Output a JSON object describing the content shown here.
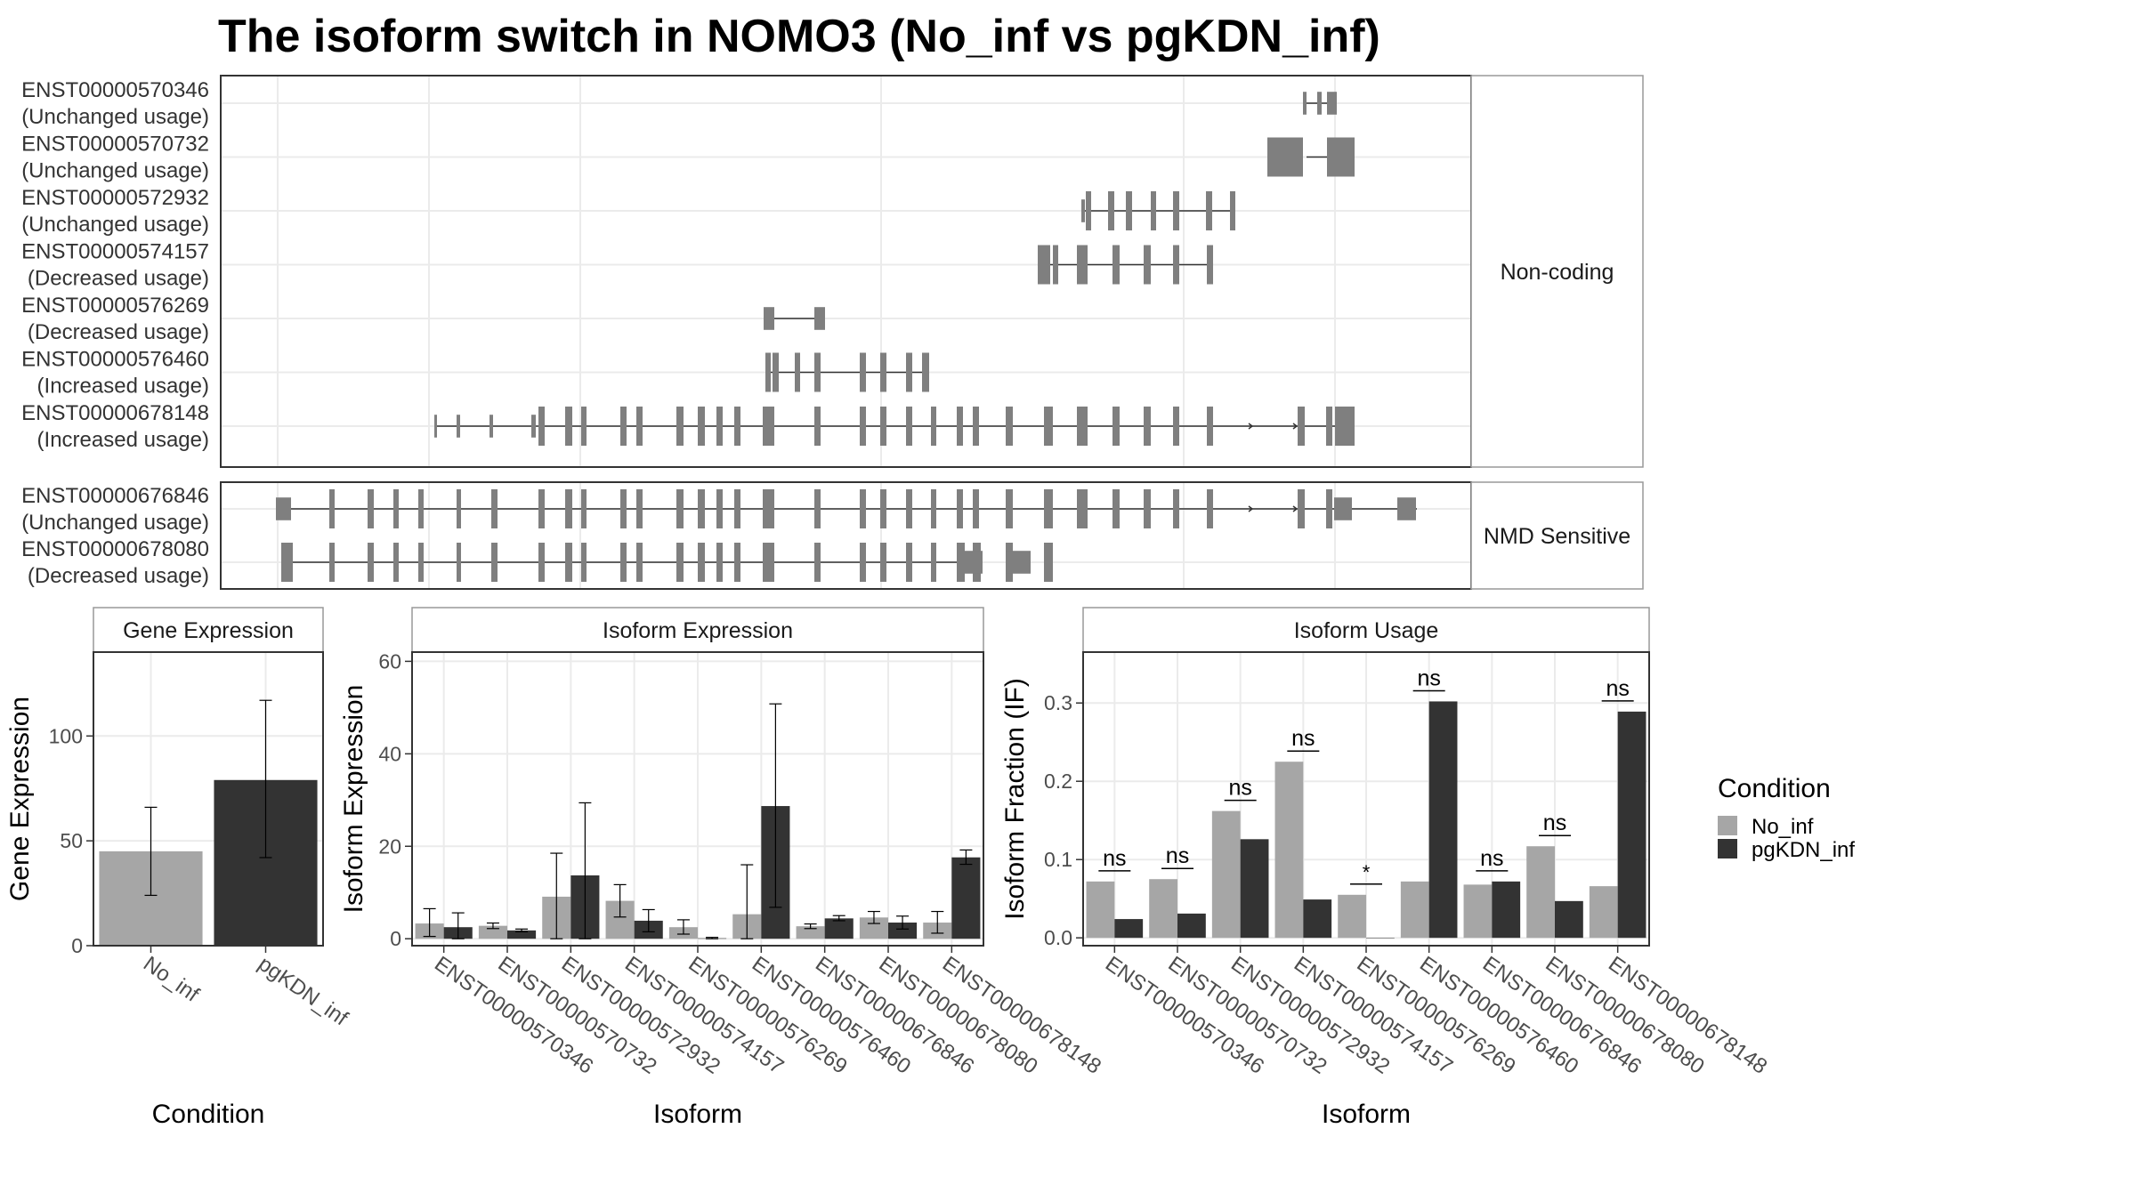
{
  "title": "The isoform switch in NOMO3 (No_inf vs pgKDN_inf)",
  "colors": {
    "no_inf": "#a6a6a6",
    "pgkdn_inf": "#333333",
    "exon": "#7f7f7f",
    "panel_border": "#333333",
    "strip_fill": "#ffffff",
    "grid": "#ebebeb",
    "text": "#333333"
  },
  "chart_data": [
    {
      "type": "gene-structure",
      "panels": [
        {
          "label": "Non-coding",
          "isoforms": [
            {
              "id": "ENST00000570346",
              "usage": "(Unchanged usage)"
            },
            {
              "id": "ENST00000570732",
              "usage": "(Unchanged usage)"
            },
            {
              "id": "ENST00000572932",
              "usage": "(Unchanged usage)"
            },
            {
              "id": "ENST00000574157",
              "usage": "(Decreased usage)"
            },
            {
              "id": "ENST00000576269",
              "usage": "(Decreased usage)"
            },
            {
              "id": "ENST00000576460",
              "usage": "(Increased usage)"
            },
            {
              "id": "ENST00000678148",
              "usage": "(Increased usage)"
            }
          ]
        },
        {
          "label": "NMD Sensitive",
          "isoforms": [
            {
              "id": "ENST00000676846",
              "usage": "(Unchanged usage)"
            },
            {
              "id": "ENST00000678080",
              "usage": "(Decreased usage)"
            }
          ]
        }
      ]
    },
    {
      "type": "bar",
      "strip": "Gene Expression",
      "xlabel": "Condition",
      "ylabel": "Gene Expression",
      "categories": [
        "No_inf",
        "pgKDN_inf"
      ],
      "values": [
        45,
        79
      ],
      "error_low": [
        24,
        42
      ],
      "error_high": [
        66,
        117
      ],
      "ylim": [
        0,
        140
      ],
      "yticks": [
        0,
        50,
        100
      ],
      "grid": true
    },
    {
      "type": "bar",
      "strip": "Isoform Expression",
      "xlabel": "Isoform",
      "ylabel": "Isoform Expression",
      "categories": [
        "ENST00000570346",
        "ENST00000570732",
        "ENST00000572932",
        "ENST00000574157",
        "ENST00000576269",
        "ENST00000576460",
        "ENST00000676846",
        "ENST00000678080",
        "ENST00000678148"
      ],
      "series": [
        {
          "name": "No_inf",
          "values": [
            3.3,
            2.8,
            9.1,
            8.2,
            2.5,
            5.3,
            2.7,
            4.6,
            3.5
          ],
          "error_low": [
            0.5,
            2.2,
            0,
            4.7,
            1.0,
            0,
            2.2,
            3.3,
            1.2
          ],
          "error_high": [
            6.5,
            3.4,
            18.5,
            11.7,
            4.1,
            16.0,
            3.2,
            5.9,
            5.9
          ]
        },
        {
          "name": "pgKDN_inf",
          "values": [
            2.5,
            1.8,
            13.7,
            3.9,
            0.1,
            28.7,
            4.4,
            3.5,
            17.6
          ],
          "error_low": [
            0,
            1.5,
            0,
            1.5,
            0,
            6.8,
            3.9,
            2.1,
            16.1
          ],
          "error_high": [
            5.6,
            2.1,
            29.4,
            6.3,
            0.3,
            50.8,
            5.0,
            4.9,
            19.2
          ]
        }
      ],
      "ylim": [
        -1.5,
        62
      ],
      "yticks": [
        0,
        20,
        40,
        60
      ],
      "grid": true
    },
    {
      "type": "bar",
      "strip": "Isoform Usage",
      "xlabel": "Isoform",
      "ylabel": "Isoform Fraction (IF)",
      "categories": [
        "ENST00000570346",
        "ENST00000570732",
        "ENST00000572932",
        "ENST00000574157",
        "ENST00000576269",
        "ENST00000576460",
        "ENST00000676846",
        "ENST00000678080",
        "ENST00000678148"
      ],
      "series": [
        {
          "name": "No_inf",
          "values": [
            0.072,
            0.075,
            0.162,
            0.225,
            0.055,
            0.072,
            0.068,
            0.117,
            0.066
          ]
        },
        {
          "name": "pgKDN_inf",
          "values": [
            0.024,
            0.031,
            0.126,
            0.049,
            0.0,
            0.302,
            0.072,
            0.047,
            0.289
          ]
        }
      ],
      "significance": [
        "ns",
        "ns",
        "ns",
        "ns",
        "*",
        "ns",
        "ns",
        "ns",
        "ns"
      ],
      "ylim": [
        -0.01,
        0.365
      ],
      "yticks": [
        "0.0",
        "0.1",
        "0.2",
        "0.3"
      ],
      "grid": true
    }
  ],
  "legend": {
    "title": "Condition",
    "entries": [
      "No_inf",
      "pgKDN_inf"
    ],
    "position": "right"
  }
}
